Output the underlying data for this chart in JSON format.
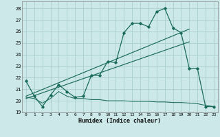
{
  "xlabel": "Humidex (Indice chaleur)",
  "bg_color": "#cce8e8",
  "grid_color": "#aacece",
  "line_color": "#1a6b5a",
  "xlim": [
    -0.5,
    23.5
  ],
  "ylim": [
    19,
    28.6
  ],
  "yticks": [
    19,
    20,
    21,
    22,
    23,
    24,
    25,
    26,
    27,
    28
  ],
  "xticks": [
    0,
    1,
    2,
    3,
    4,
    5,
    6,
    7,
    8,
    9,
    10,
    11,
    12,
    13,
    14,
    15,
    16,
    17,
    18,
    19,
    20,
    21,
    22,
    23
  ],
  "curve1_x": [
    0,
    1,
    2,
    3,
    4,
    5,
    6,
    7,
    8,
    9,
    10,
    11,
    12,
    13,
    14,
    15,
    16,
    17,
    18,
    19,
    20,
    21,
    22,
    23
  ],
  "curve1_y": [
    21.7,
    20.4,
    19.5,
    20.5,
    21.4,
    20.8,
    20.3,
    20.4,
    22.2,
    22.2,
    23.4,
    23.3,
    25.9,
    26.7,
    26.7,
    26.4,
    27.7,
    28.0,
    26.3,
    25.9,
    22.8,
    22.8,
    19.5,
    19.5
  ],
  "trend1_x": [
    0,
    20
  ],
  "trend1_y": [
    20.4,
    26.2
  ],
  "trend2_x": [
    0,
    20
  ],
  "trend2_y": [
    20.2,
    25.1
  ],
  "min_x": [
    0,
    1,
    2,
    3,
    4,
    5,
    6,
    7,
    8,
    9,
    10,
    11,
    12,
    13,
    14,
    15,
    16,
    17,
    18,
    19,
    20,
    21,
    22,
    23
  ],
  "min_y": [
    20.3,
    20.2,
    19.8,
    20.2,
    20.8,
    20.4,
    20.2,
    20.2,
    20.1,
    20.1,
    20.0,
    20.0,
    20.0,
    19.95,
    19.95,
    19.95,
    19.9,
    19.9,
    19.85,
    19.85,
    19.8,
    19.75,
    19.6,
    19.5
  ]
}
